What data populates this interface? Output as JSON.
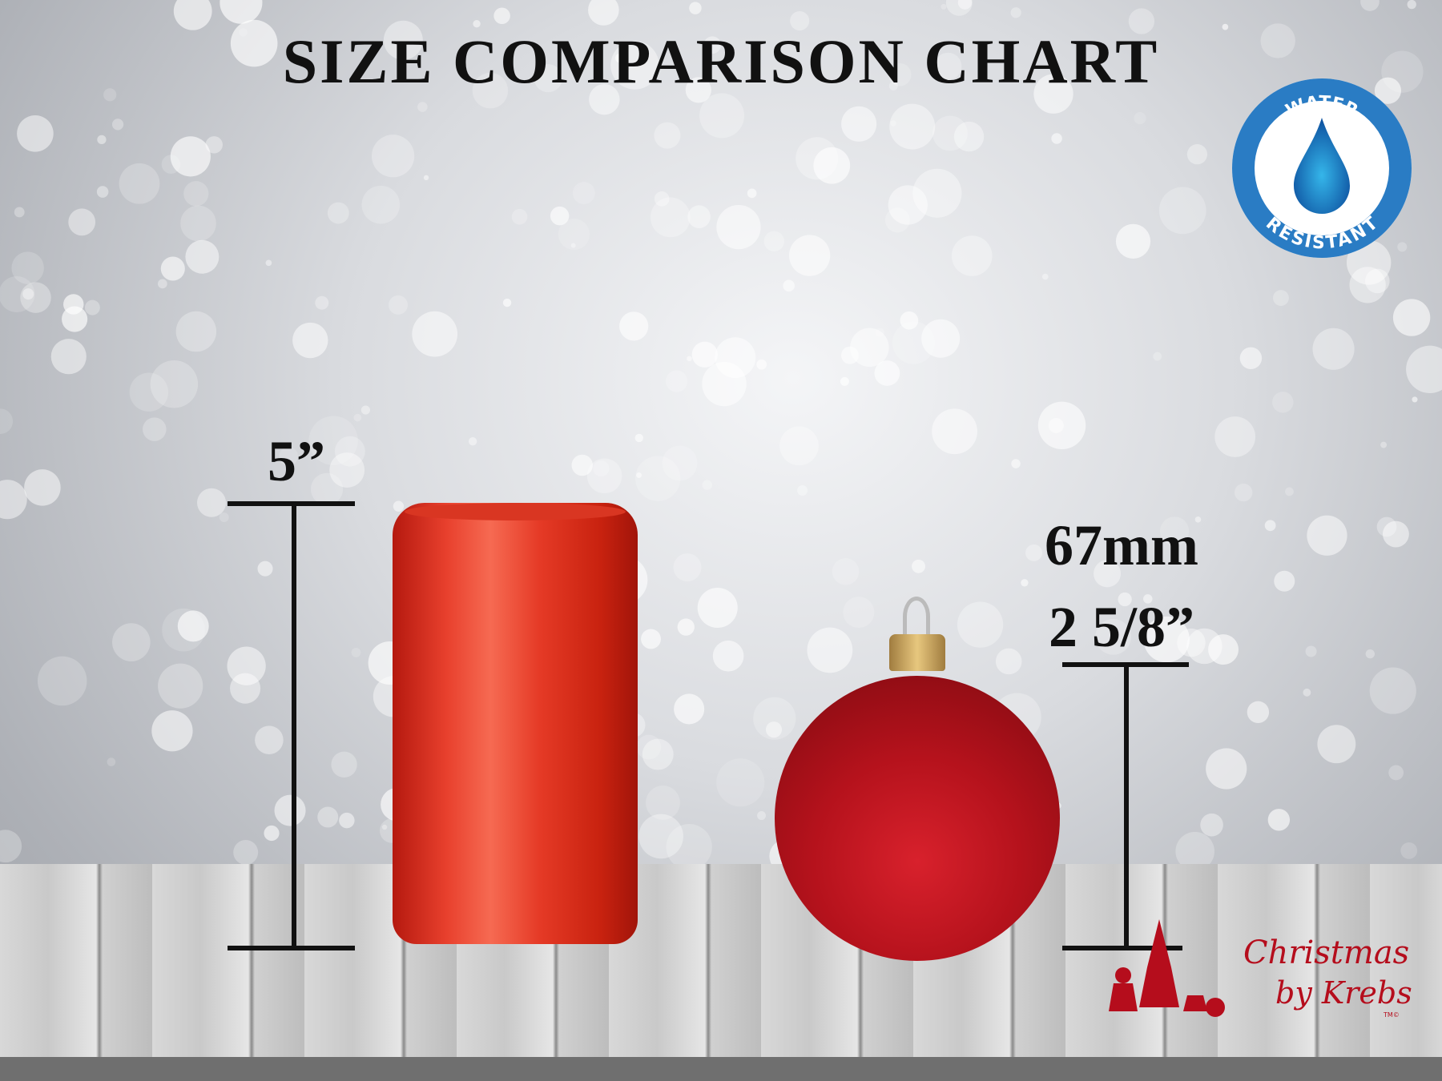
{
  "title": "SIZE COMPARISON CHART",
  "can": {
    "height_label": "5”"
  },
  "ornament": {
    "diameter_mm": "67mm",
    "diameter_in": "2 5/8”"
  },
  "badge": {
    "top_text": "WATER",
    "bottom_text": "RESISTANT",
    "color": "#2a7cc4"
  },
  "logo": {
    "line1": "Christmas",
    "line2": "by Krebs",
    "tm": "TM©",
    "color": "#b50d1c"
  }
}
